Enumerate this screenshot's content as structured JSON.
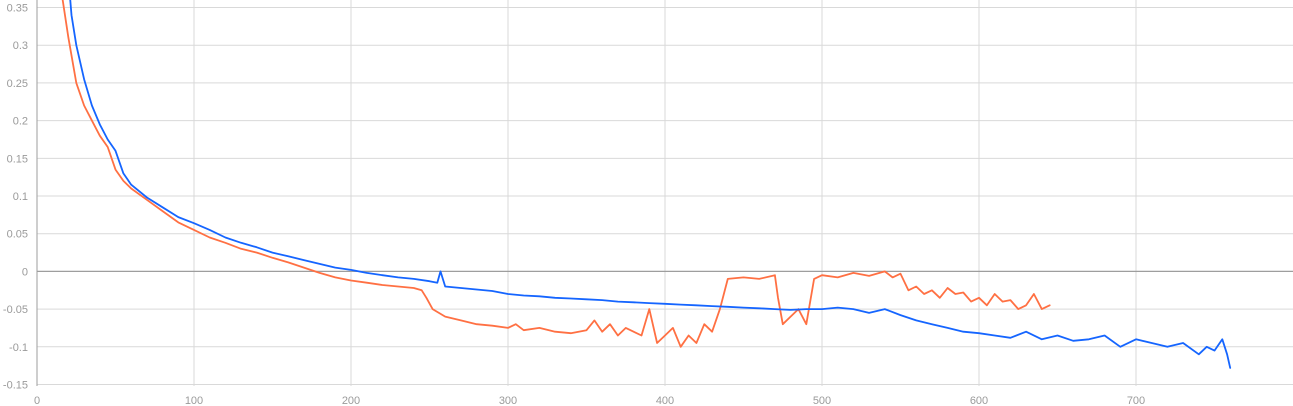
{
  "chart_data": {
    "type": "line",
    "title": "",
    "xlabel": "",
    "ylabel": "",
    "xlim": [
      0,
      800
    ],
    "ylim": [
      -0.152,
      0.36
    ],
    "x_ticks": [
      0,
      100,
      200,
      300,
      400,
      500,
      600,
      700
    ],
    "x_tick_labels": [
      "0",
      "100",
      "200",
      "300",
      "400",
      "500",
      "600",
      "700"
    ],
    "y_ticks": [
      0.35,
      0.3,
      0.25,
      0.2,
      0.15,
      0.1,
      0.05,
      0,
      -0.05,
      -0.1,
      -0.15
    ],
    "y_tick_labels": [
      "0.35",
      "0.3",
      "0.25",
      "0.2",
      "0.15",
      "0.1",
      "0.05",
      "0",
      "-0.05",
      "-0.1",
      "-0.15"
    ],
    "grid": true,
    "legend": "none",
    "series": [
      {
        "color": "#ff7043",
        "x": [
          16,
          20,
          25,
          30,
          35,
          40,
          45,
          50,
          55,
          60,
          70,
          80,
          90,
          100,
          110,
          120,
          130,
          140,
          150,
          160,
          170,
          180,
          190,
          200,
          210,
          220,
          230,
          240,
          245,
          248,
          252,
          260,
          270,
          280,
          290,
          300,
          305,
          310,
          320,
          330,
          340,
          350,
          355,
          360,
          365,
          370,
          375,
          380,
          385,
          390,
          395,
          400,
          405,
          410,
          415,
          420,
          425,
          430,
          435,
          440,
          450,
          460,
          470,
          472,
          475,
          480,
          485,
          490,
          495,
          500,
          510,
          520,
          530,
          540,
          545,
          550,
          555,
          560,
          565,
          570,
          575,
          580,
          585,
          590,
          595,
          600,
          605,
          610,
          615,
          620,
          625,
          630,
          635,
          640,
          645
        ],
        "y": [
          0.365,
          0.31,
          0.25,
          0.22,
          0.2,
          0.18,
          0.165,
          0.135,
          0.12,
          0.11,
          0.095,
          0.08,
          0.065,
          0.055,
          0.045,
          0.038,
          0.03,
          0.025,
          0.018,
          0.012,
          0.005,
          -0.002,
          -0.008,
          -0.012,
          -0.015,
          -0.018,
          -0.02,
          -0.022,
          -0.025,
          -0.035,
          -0.05,
          -0.06,
          -0.065,
          -0.07,
          -0.072,
          -0.075,
          -0.07,
          -0.078,
          -0.075,
          -0.08,
          -0.082,
          -0.078,
          -0.065,
          -0.08,
          -0.07,
          -0.085,
          -0.075,
          -0.08,
          -0.085,
          -0.05,
          -0.095,
          -0.085,
          -0.075,
          -0.1,
          -0.085,
          -0.095,
          -0.07,
          -0.08,
          -0.05,
          -0.01,
          -0.008,
          -0.01,
          -0.005,
          -0.035,
          -0.07,
          -0.06,
          -0.05,
          -0.07,
          -0.01,
          -0.005,
          -0.008,
          -0.002,
          -0.006,
          0.0,
          -0.008,
          -0.003,
          -0.025,
          -0.02,
          -0.03,
          -0.025,
          -0.035,
          -0.022,
          -0.03,
          -0.028,
          -0.04,
          -0.035,
          -0.045,
          -0.03,
          -0.04,
          -0.038,
          -0.05,
          -0.045,
          -0.03,
          -0.05,
          -0.045
        ]
      },
      {
        "color": "#1565ff",
        "x": [
          20,
          22,
          25,
          30,
          35,
          40,
          45,
          50,
          55,
          60,
          70,
          80,
          90,
          100,
          110,
          120,
          130,
          140,
          150,
          160,
          170,
          180,
          190,
          200,
          210,
          220,
          230,
          240,
          250,
          255,
          257,
          260,
          270,
          280,
          290,
          300,
          310,
          320,
          330,
          340,
          350,
          360,
          370,
          380,
          390,
          400,
          410,
          420,
          430,
          440,
          450,
          460,
          470,
          480,
          490,
          500,
          510,
          520,
          530,
          540,
          550,
          560,
          570,
          580,
          590,
          600,
          610,
          620,
          630,
          640,
          650,
          660,
          670,
          680,
          690,
          700,
          710,
          720,
          730,
          740,
          745,
          750,
          755,
          758,
          760
        ],
        "y": [
          0.39,
          0.34,
          0.3,
          0.255,
          0.22,
          0.195,
          0.175,
          0.16,
          0.13,
          0.115,
          0.098,
          0.085,
          0.072,
          0.064,
          0.055,
          0.045,
          0.038,
          0.032,
          0.025,
          0.02,
          0.015,
          0.01,
          0.005,
          0.002,
          -0.002,
          -0.005,
          -0.008,
          -0.01,
          -0.013,
          -0.015,
          0.0,
          -0.02,
          -0.022,
          -0.024,
          -0.026,
          -0.03,
          -0.032,
          -0.033,
          -0.035,
          -0.036,
          -0.037,
          -0.038,
          -0.04,
          -0.041,
          -0.042,
          -0.043,
          -0.044,
          -0.045,
          -0.046,
          -0.047,
          -0.048,
          -0.049,
          -0.05,
          -0.051,
          -0.05,
          -0.05,
          -0.048,
          -0.05,
          -0.055,
          -0.05,
          -0.058,
          -0.065,
          -0.07,
          -0.075,
          -0.08,
          -0.082,
          -0.085,
          -0.088,
          -0.08,
          -0.09,
          -0.085,
          -0.092,
          -0.09,
          -0.085,
          -0.1,
          -0.09,
          -0.095,
          -0.1,
          -0.095,
          -0.11,
          -0.1,
          -0.105,
          -0.09,
          -0.11,
          -0.128
        ]
      }
    ]
  }
}
